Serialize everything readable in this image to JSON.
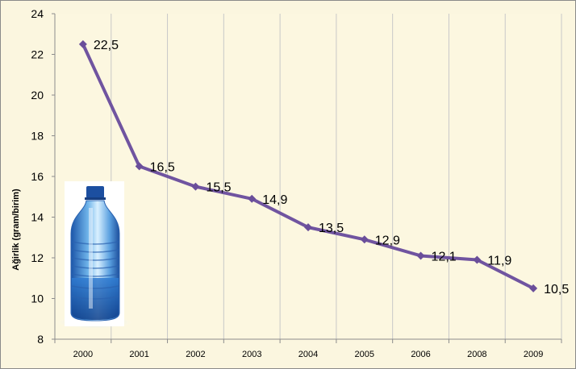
{
  "chart_data": {
    "type": "line",
    "title": "",
    "xlabel": "",
    "ylabel": "Ağirlik (gram/birim)",
    "categories": [
      "2000",
      "2001",
      "2002",
      "2003",
      "2004",
      "2005",
      "2006",
      "2008",
      "2009"
    ],
    "series": [
      {
        "values": [
          22.5,
          16.5,
          15.5,
          14.9,
          13.5,
          12.9,
          12.1,
          11.9,
          10.5
        ],
        "data_labels": [
          "22,5",
          "16,5",
          "15,5",
          "14,9",
          "13,5",
          "12,9",
          "12,1",
          "11,9",
          "10,5"
        ]
      }
    ],
    "ylim": [
      8,
      24
    ],
    "yticks": [
      8,
      10,
      12,
      14,
      16,
      18,
      20,
      22,
      24
    ],
    "grid": "vertical",
    "legend": "none",
    "colors": {
      "line": "#7054a0",
      "marker": "#6a4e9a",
      "plot_background": "#fcf7e0",
      "grid": "#c8c8c8"
    },
    "image": "water-bottle"
  }
}
